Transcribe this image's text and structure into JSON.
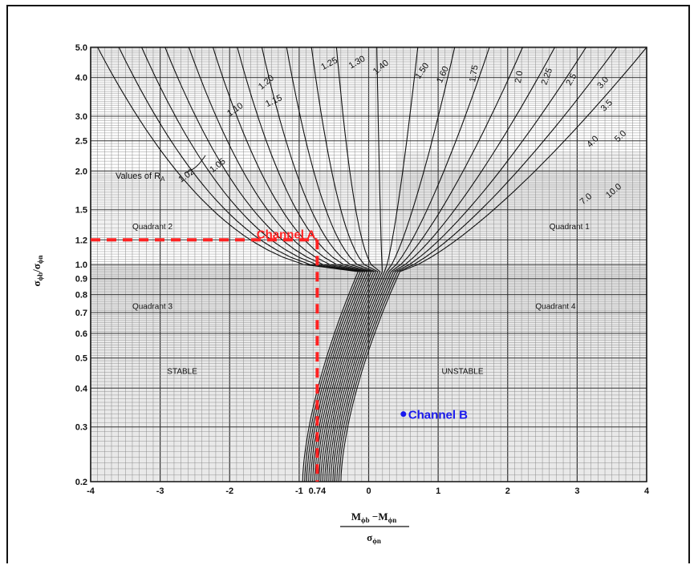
{
  "chart_data": {
    "type": "line",
    "x_ticks": [
      "-4",
      "-3",
      "-2",
      "-1",
      "0",
      "1",
      "2",
      "3",
      "4"
    ],
    "x_extra_tick": "0.74",
    "y_ticks": [
      "0.2",
      "0.3",
      "0.4",
      "0.5",
      "0.6",
      "0.7",
      "0.8",
      "0.9",
      "1.0",
      "1.2",
      "1.5",
      "2.0",
      "2.5",
      "3.0",
      "4.0",
      "5.0"
    ],
    "xlim": [
      -4,
      4
    ],
    "ylim": [
      0.2,
      5.0
    ],
    "y_scale": "log",
    "grid": true,
    "xlabel_num_a": "M",
    "xlabel_sub_a": "ϕb",
    "xlabel_op": " −M",
    "xlabel_sub_b": "ϕn",
    "xlabel_den": "σ",
    "xlabel_den_sub": "ϕn",
    "ylabel_a": "σ",
    "ylabel_sub_a": "ϕb",
    "ylabel_sep": "/σ",
    "ylabel_sub_b": "ϕn",
    "curve_values_label": "Values of R",
    "curve_values_sub": "A",
    "curve_labels": [
      "1.02",
      "1.05",
      "1.10",
      "1.15",
      "1.20",
      "1.25",
      "1.30",
      "1.40",
      "1.50",
      "1.60",
      "1.75",
      "2.0",
      "2.25",
      "2.5",
      "3.0",
      "3.5",
      "4.0",
      "5.0",
      "7.0",
      "10.0"
    ],
    "regions": {
      "q1": "Quadrant 1",
      "q2": "Quadrant 2",
      "q3": "Quadrant 3",
      "q4": "Quadrant 4",
      "stable": "STABLE",
      "unstable": "UNSTABLE"
    },
    "annotations": [
      {
        "label": "Channel A",
        "x": -0.74,
        "y": 1.2,
        "color": "#ff2222"
      },
      {
        "label": "Channel B",
        "x": 0.5,
        "y": 0.33,
        "color": "#1a1aee"
      }
    ]
  }
}
